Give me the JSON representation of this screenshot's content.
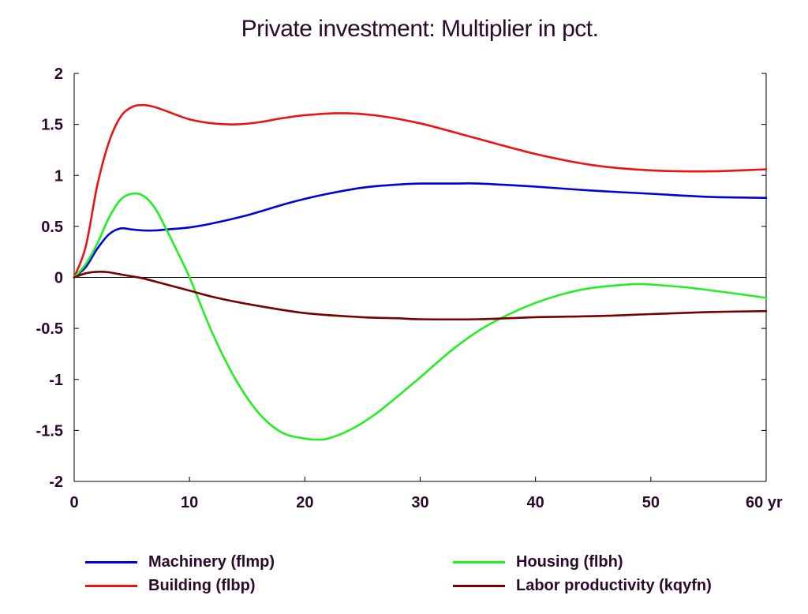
{
  "chart_data": {
    "type": "line",
    "title": "Private investment: Multiplier in pct.",
    "xlabel": "",
    "ylabel": "",
    "xlim": [
      0,
      60
    ],
    "ylim": [
      -2,
      2
    ],
    "x_ticks": [
      "0",
      "10",
      "20",
      "30",
      "40",
      "50",
      "60 yr"
    ],
    "y_ticks": [
      "2",
      "1.5",
      "1",
      "0.5",
      "0",
      "-0.5",
      "-1",
      "-1.5",
      "-2"
    ],
    "zero_line": true,
    "grid": false,
    "legend_position": "bottom",
    "series": [
      {
        "name": "Machinery (flmp)",
        "color": "#0000dd",
        "x": [
          0,
          1,
          2,
          3,
          4,
          5,
          6,
          7,
          8,
          10,
          12,
          15,
          18,
          20,
          22,
          25,
          28,
          30,
          33,
          35,
          40,
          45,
          50,
          55,
          60
        ],
        "y": [
          0,
          0.1,
          0.28,
          0.42,
          0.48,
          0.47,
          0.46,
          0.46,
          0.47,
          0.49,
          0.53,
          0.61,
          0.71,
          0.77,
          0.82,
          0.88,
          0.91,
          0.92,
          0.92,
          0.92,
          0.89,
          0.85,
          0.82,
          0.79,
          0.78
        ]
      },
      {
        "name": "Building (flbp)",
        "color": "#ee1111",
        "x": [
          0,
          1,
          2,
          3,
          4,
          5,
          6,
          7,
          8,
          10,
          12,
          14,
          16,
          18,
          20,
          23,
          26,
          30,
          35,
          40,
          45,
          50,
          55,
          60
        ],
        "y": [
          0,
          0.3,
          0.9,
          1.32,
          1.57,
          1.67,
          1.69,
          1.67,
          1.63,
          1.55,
          1.51,
          1.5,
          1.52,
          1.56,
          1.59,
          1.61,
          1.59,
          1.51,
          1.36,
          1.21,
          1.1,
          1.05,
          1.04,
          1.06
        ]
      },
      {
        "name": "Housing (flbh)",
        "color": "#22ee22",
        "x": [
          0,
          1,
          2,
          3,
          4,
          5,
          6,
          7,
          8,
          9,
          10,
          12,
          14,
          16,
          18,
          20,
          21,
          22,
          24,
          26,
          28,
          30,
          33,
          36,
          40,
          44,
          48,
          50,
          54,
          60
        ],
        "y": [
          0,
          0.13,
          0.33,
          0.58,
          0.76,
          0.82,
          0.8,
          0.68,
          0.47,
          0.24,
          0.0,
          -0.55,
          -1.0,
          -1.33,
          -1.52,
          -1.58,
          -1.59,
          -1.58,
          -1.49,
          -1.35,
          -1.17,
          -0.98,
          -0.69,
          -0.46,
          -0.25,
          -0.12,
          -0.07,
          -0.07,
          -0.11,
          -0.2
        ]
      },
      {
        "name": "Labor productivity (kqyfn)",
        "color": "#770000",
        "x": [
          0,
          1,
          2,
          3,
          4,
          5,
          6,
          8,
          10,
          12,
          15,
          20,
          25,
          28,
          30,
          35,
          40,
          45,
          50,
          55,
          60
        ],
        "y": [
          0,
          0.04,
          0.055,
          0.05,
          0.03,
          0.01,
          -0.01,
          -0.07,
          -0.13,
          -0.19,
          -0.26,
          -0.35,
          -0.39,
          -0.4,
          -0.41,
          -0.41,
          -0.39,
          -0.38,
          -0.36,
          -0.34,
          -0.33
        ]
      }
    ]
  }
}
